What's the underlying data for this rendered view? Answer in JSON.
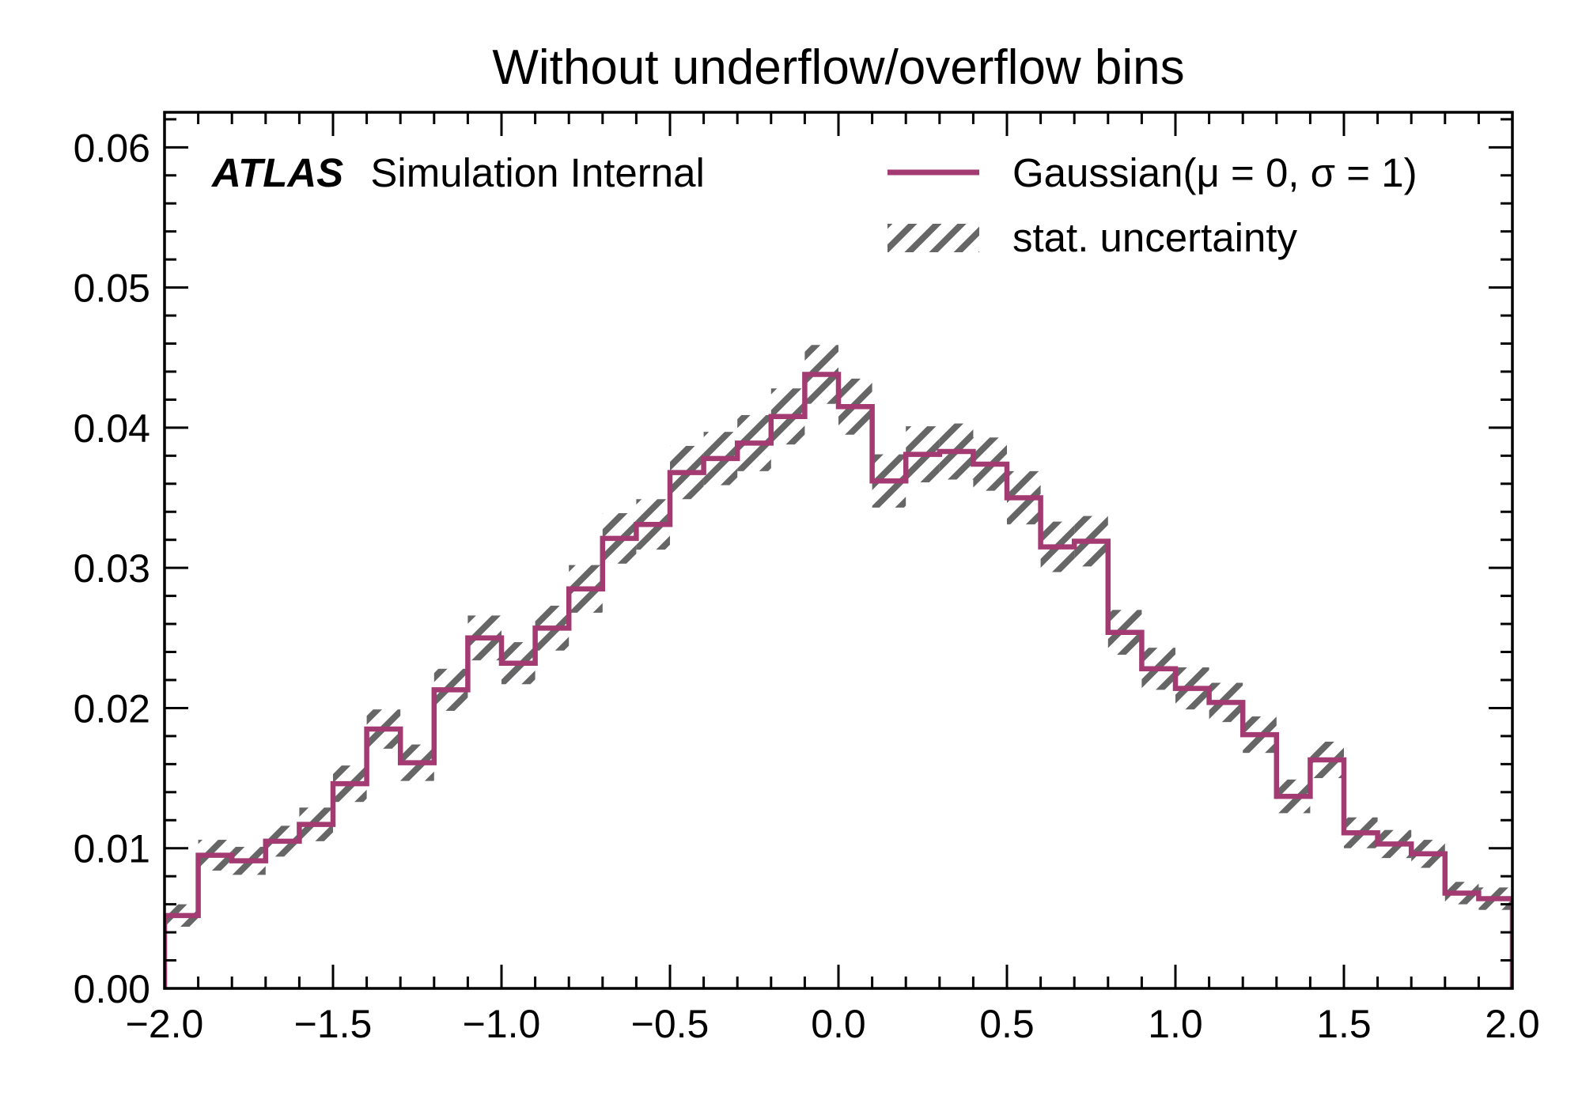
{
  "chart_data": {
    "type": "histogram",
    "title": "Without underflow/overflow bins",
    "xlabel": "",
    "ylabel": "",
    "xlim": [
      -2.0,
      2.0
    ],
    "ylim": [
      0.0,
      0.0625
    ],
    "grid": false,
    "legend_position": "top-right",
    "x_ticks": [
      "−2.0",
      "−1.5",
      "−1.0",
      "−0.5",
      "0.0",
      "0.5",
      "1.0",
      "1.5",
      "2.0"
    ],
    "y_ticks": [
      "0.00",
      "0.01",
      "0.02",
      "0.03",
      "0.04",
      "0.05",
      "0.06"
    ],
    "bin_edges": [
      -2.0,
      -1.9,
      -1.8,
      -1.7,
      -1.6,
      -1.5,
      -1.4,
      -1.3,
      -1.2,
      -1.1,
      -1.0,
      -0.9,
      -0.8,
      -0.7,
      -0.6,
      -0.5,
      -0.4,
      -0.3,
      -0.2,
      -0.1,
      0.0,
      0.1,
      0.2,
      0.3,
      0.4,
      0.5,
      0.6,
      0.7,
      0.8,
      0.9,
      1.0,
      1.1,
      1.2,
      1.3,
      1.4,
      1.5,
      1.6,
      1.7,
      1.8,
      1.9,
      2.0
    ],
    "series": [
      {
        "name": "Gaussian(μ = 0, σ = 1)",
        "color": "#a33b72",
        "values": [
          0.0052,
          0.0095,
          0.0091,
          0.0105,
          0.0117,
          0.0146,
          0.0185,
          0.0161,
          0.0213,
          0.025,
          0.0232,
          0.0257,
          0.0285,
          0.0321,
          0.0331,
          0.0368,
          0.0378,
          0.0389,
          0.0408,
          0.0438,
          0.0415,
          0.0362,
          0.0381,
          0.0383,
          0.0374,
          0.035,
          0.0315,
          0.0319,
          0.0254,
          0.0228,
          0.0214,
          0.0204,
          0.0181,
          0.0137,
          0.0163,
          0.0111,
          0.0103,
          0.0096,
          0.0068,
          0.0064
        ]
      }
    ],
    "uncertainty": {
      "name": "stat. uncertainty",
      "color": "#666666",
      "values": [
        0.0008,
        0.0011,
        0.001,
        0.0011,
        0.0012,
        0.0013,
        0.0014,
        0.0013,
        0.0015,
        0.0016,
        0.0015,
        0.0016,
        0.0017,
        0.0018,
        0.0018,
        0.0019,
        0.0019,
        0.002,
        0.002,
        0.0021,
        0.002,
        0.0019,
        0.002,
        0.002,
        0.0019,
        0.0019,
        0.0018,
        0.0018,
        0.0016,
        0.0015,
        0.0015,
        0.0014,
        0.0013,
        0.0012,
        0.0013,
        0.0011,
        0.001,
        0.001,
        0.0008,
        0.0008
      ]
    }
  },
  "label": {
    "atlas": "ATLAS",
    "suffix": "Simulation Internal"
  }
}
